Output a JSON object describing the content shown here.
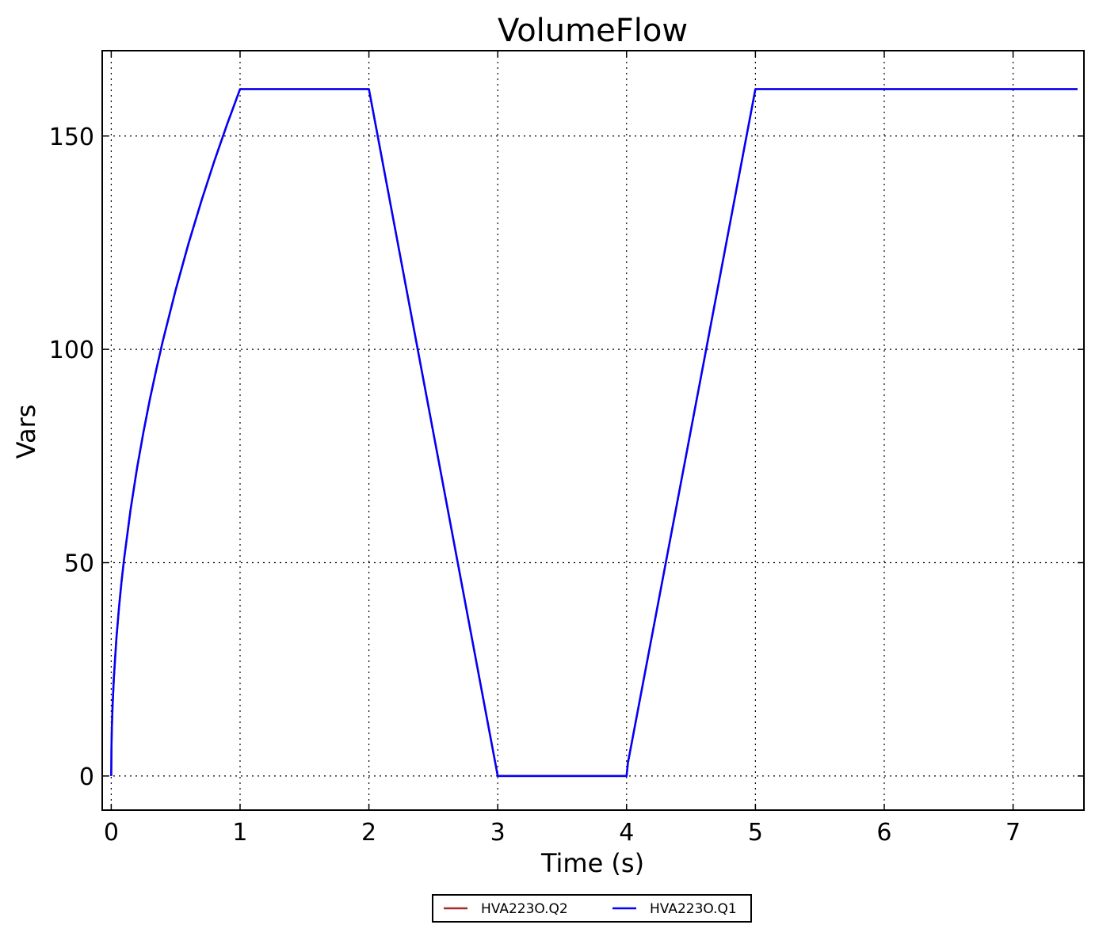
{
  "chart_data": {
    "type": "line",
    "title": "VolumeFlow",
    "xlabel": "Time (s)",
    "ylabel": "Vars",
    "xlim": [
      -0.07,
      7.55
    ],
    "ylim": [
      -8,
      170
    ],
    "xticks": [
      0,
      1,
      2,
      3,
      4,
      5,
      6,
      7
    ],
    "yticks": [
      0,
      50,
      100,
      150
    ],
    "grid": true,
    "legend_position": "bottom-center",
    "series": [
      {
        "name": "HVA223O.Q2",
        "color": "#a52a2a",
        "x": [
          0,
          0.002,
          0.005,
          0.01,
          0.02,
          0.04,
          0.06,
          0.08,
          0.1,
          0.15,
          0.2,
          0.25,
          0.3,
          0.35,
          0.4,
          0.5,
          0.6,
          0.7,
          0.8,
          0.9,
          1.0,
          2.0,
          3.0,
          4.0,
          4.01,
          5.0,
          7.5
        ],
        "y": [
          0,
          7.2,
          11.4,
          16.1,
          22.8,
          32.2,
          39.4,
          45.6,
          50.9,
          62.4,
          72.1,
          80.6,
          88.3,
          95.3,
          101.9,
          113.9,
          124.8,
          134.8,
          144.1,
          152.8,
          161.0,
          161.0,
          0,
          0,
          3,
          161.0,
          161.0
        ]
      },
      {
        "name": "HVA223O.Q1",
        "color": "#0000ff",
        "x": [
          0,
          0.002,
          0.005,
          0.01,
          0.02,
          0.04,
          0.06,
          0.08,
          0.1,
          0.15,
          0.2,
          0.25,
          0.3,
          0.35,
          0.4,
          0.5,
          0.6,
          0.7,
          0.8,
          0.9,
          1.0,
          2.0,
          3.0,
          4.0,
          4.01,
          5.0,
          7.5
        ],
        "y": [
          0,
          7.2,
          11.4,
          16.1,
          22.8,
          32.2,
          39.4,
          45.6,
          50.9,
          62.4,
          72.1,
          80.6,
          88.3,
          95.3,
          101.9,
          113.9,
          124.8,
          134.8,
          144.1,
          152.8,
          161.0,
          161.0,
          0,
          0,
          3,
          161.0,
          161.0
        ]
      }
    ]
  }
}
